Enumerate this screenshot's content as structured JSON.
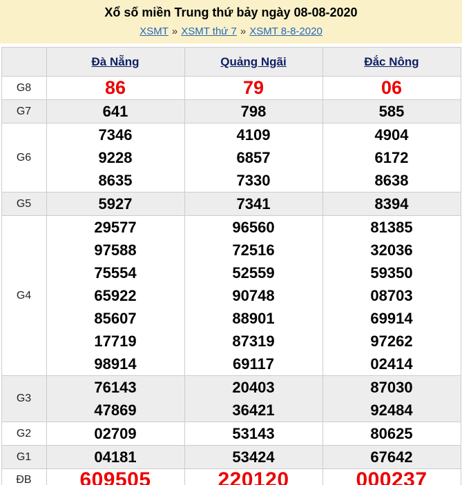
{
  "colors": {
    "banner_bg": "#FAF1C9",
    "alt_row_bg": "#EDEDED",
    "table_border": "#CCCCCC",
    "result_red": "#EE0000",
    "result_black": "#000000",
    "column_header_link": "#0D1F63",
    "breadcrumb_link": "#2667BA"
  },
  "header": {
    "title": "Xổ số miền Trung thứ bảy ngày 08-08-2020",
    "breadcrumb": {
      "separator": "»",
      "links": [
        "XSMT",
        "XSMT thứ 7",
        "XSMT 8-8-2020"
      ]
    }
  },
  "table": {
    "columns": [
      "Đà Nẵng",
      "Quảng Ngãi",
      "Đắc Nông"
    ],
    "rows": [
      {
        "label": "G8",
        "style": "red-lg",
        "alt": false,
        "cells": [
          [
            "86"
          ],
          [
            "79"
          ],
          [
            "06"
          ]
        ]
      },
      {
        "label": "G7",
        "style": "num",
        "alt": true,
        "cells": [
          [
            "641"
          ],
          [
            "798"
          ],
          [
            "585"
          ]
        ]
      },
      {
        "label": "G6",
        "style": "num",
        "alt": false,
        "cells": [
          [
            "7346",
            "9228",
            "8635"
          ],
          [
            "4109",
            "6857",
            "7330"
          ],
          [
            "4904",
            "6172",
            "8638"
          ]
        ]
      },
      {
        "label": "G5",
        "style": "num",
        "alt": true,
        "cells": [
          [
            "5927"
          ],
          [
            "7341"
          ],
          [
            "8394"
          ]
        ]
      },
      {
        "label": "G4",
        "style": "num",
        "alt": false,
        "cells": [
          [
            "29577",
            "97588",
            "75554",
            "65922",
            "85607",
            "17719",
            "98914"
          ],
          [
            "96560",
            "72516",
            "52559",
            "90748",
            "88901",
            "87319",
            "69117"
          ],
          [
            "81385",
            "32036",
            "59350",
            "08703",
            "69914",
            "97262",
            "02414"
          ]
        ]
      },
      {
        "label": "G3",
        "style": "num",
        "alt": true,
        "cells": [
          [
            "76143",
            "47869"
          ],
          [
            "20403",
            "36421"
          ],
          [
            "87030",
            "92484"
          ]
        ]
      },
      {
        "label": "G2",
        "style": "num",
        "alt": false,
        "cells": [
          [
            "02709"
          ],
          [
            "53143"
          ],
          [
            "80625"
          ]
        ]
      },
      {
        "label": "G1",
        "style": "num",
        "alt": true,
        "cells": [
          [
            "04181"
          ],
          [
            "53424"
          ],
          [
            "67642"
          ]
        ]
      },
      {
        "label": "ĐB",
        "style": "red-xl",
        "alt": false,
        "cells": [
          [
            "609505"
          ],
          [
            "220120"
          ],
          [
            "000237"
          ]
        ]
      }
    ]
  }
}
